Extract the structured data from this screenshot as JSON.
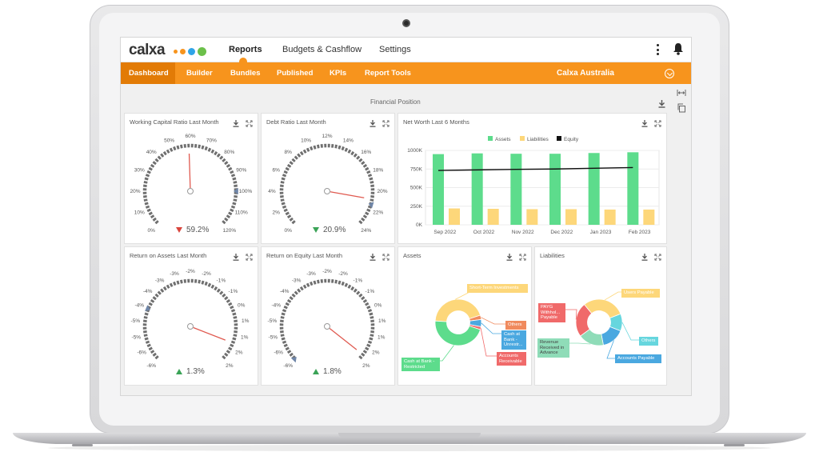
{
  "app": {
    "brand": "calxa",
    "brand_dot_colors": [
      "#f7941d",
      "#2fa4e7",
      "#6cc04a",
      "#6cc04a"
    ],
    "top_nav": [
      "Reports",
      "Budgets & Cashflow",
      "Settings"
    ],
    "active_top_nav": "Reports"
  },
  "sub_nav": {
    "tabs": [
      "Dashboard",
      "Builder",
      "Bundles",
      "Published",
      "KPIs",
      "Report Tools"
    ],
    "selected": "Dashboard",
    "organisation": "Calxa Australia"
  },
  "colors": {
    "accent": "#f7941d",
    "accent_dark": "#e27b06",
    "assets": "#5ddc8c",
    "liabilities": "#fdd77a",
    "equity": "#111111",
    "needle": "#e05a50",
    "gauge_track": "#6f6f6f"
  },
  "section": {
    "title": "Financial Position"
  },
  "gauges": [
    {
      "title": "Working Capital Ratio Last Month",
      "ticks": [
        "0%",
        "10%",
        "20%",
        "30%",
        "40%",
        "50%",
        "60%",
        "70%",
        "80%",
        "90%",
        "100%",
        "110%",
        "120%"
      ],
      "min": 0,
      "max": 120,
      "needle": 59.2,
      "marker": 100,
      "value_label": "59.2%",
      "trend": "down",
      "trend_color": "#d9453d"
    },
    {
      "title": "Debt Ratio Last Month",
      "ticks": [
        "0%",
        "2%",
        "4%",
        "6%",
        "8%",
        "10%",
        "12%",
        "14%",
        "16%",
        "18%",
        "20%",
        "22%",
        "24%"
      ],
      "min": 0,
      "max": 24,
      "needle": 20.9,
      "marker": 21.5,
      "value_label": "20.9%",
      "trend": "down",
      "trend_color": "#3aa357"
    },
    {
      "title": "Return on Assets Last Month",
      "ticks": [
        "-6%",
        "-6%",
        "-5%",
        "-5%",
        "-4%",
        "-4%",
        "-3%",
        "-3%",
        "-2%",
        "-2%",
        "-1%",
        "-1%",
        "0%",
        "1%",
        "1%",
        "2%",
        "2%"
      ],
      "min": -6,
      "max": 2,
      "needle": 1.3,
      "marker": -4,
      "value_label": "1.3%",
      "trend": "up",
      "trend_color": "#3aa357"
    },
    {
      "title": "Return on Equity Last Month",
      "ticks": [
        "-6%",
        "-6%",
        "-5%",
        "-5%",
        "-4%",
        "-4%",
        "-3%",
        "-3%",
        "-2%",
        "-2%",
        "-1%",
        "-1%",
        "0%",
        "1%",
        "1%",
        "2%",
        "2%"
      ],
      "min": -6,
      "max": 2,
      "needle": 1.8,
      "marker": -6,
      "value_label": "1.8%",
      "trend": "up",
      "trend_color": "#3aa357"
    }
  ],
  "chart_data": [
    {
      "type": "bar",
      "title": "Net Worth Last 6 Months",
      "categories": [
        "Sep 2022",
        "Oct 2022",
        "Nov 2022",
        "Dec 2022",
        "Jan 2023",
        "Feb 2023"
      ],
      "y_ticks": [
        "0K",
        "250K",
        "500K",
        "750K",
        "1000K"
      ],
      "ylim": [
        0,
        1000
      ],
      "legend_placement": "top",
      "grid": true,
      "series": [
        {
          "name": "Assets",
          "type": "bar",
          "color": "#5ddc8c",
          "values": [
            950,
            960,
            955,
            955,
            965,
            975
          ]
        },
        {
          "name": "Liabilities",
          "type": "bar",
          "color": "#fdd77a",
          "values": [
            220,
            215,
            210,
            210,
            205,
            205
          ]
        },
        {
          "name": "Equity",
          "type": "line",
          "color": "#111111",
          "values": [
            730,
            738,
            745,
            750,
            760,
            770
          ]
        }
      ]
    },
    {
      "type": "pie",
      "title": "Assets",
      "slices": [
        {
          "label": "Short-Term Investments",
          "value": 44,
          "color": "#fdd77a"
        },
        {
          "label": "Others",
          "value": 3,
          "color": "#f08a5d"
        },
        {
          "label": "Cash at Bank - Unrestr...",
          "value": 5,
          "color": "#4aa8e0"
        },
        {
          "label": "Accounts Receivable",
          "value": 2,
          "color": "#f06a6a"
        },
        {
          "label": "Cash at Bank - Restricted",
          "value": 46,
          "color": "#5ddc8c"
        }
      ]
    },
    {
      "type": "pie",
      "title": "Liabilities",
      "slices": [
        {
          "label": "Users Payable",
          "value": 30,
          "color": "#fdd77a"
        },
        {
          "label": "Others",
          "value": 12,
          "color": "#66d6de"
        },
        {
          "label": "Accounts Payable",
          "value": 16,
          "color": "#4aa8e0"
        },
        {
          "label": "Revenue Received in Advance",
          "value": 18,
          "color": "#8fdcb8"
        },
        {
          "label": "PAYG Withhol... Payable",
          "value": 24,
          "color": "#f06a6a"
        }
      ]
    }
  ]
}
